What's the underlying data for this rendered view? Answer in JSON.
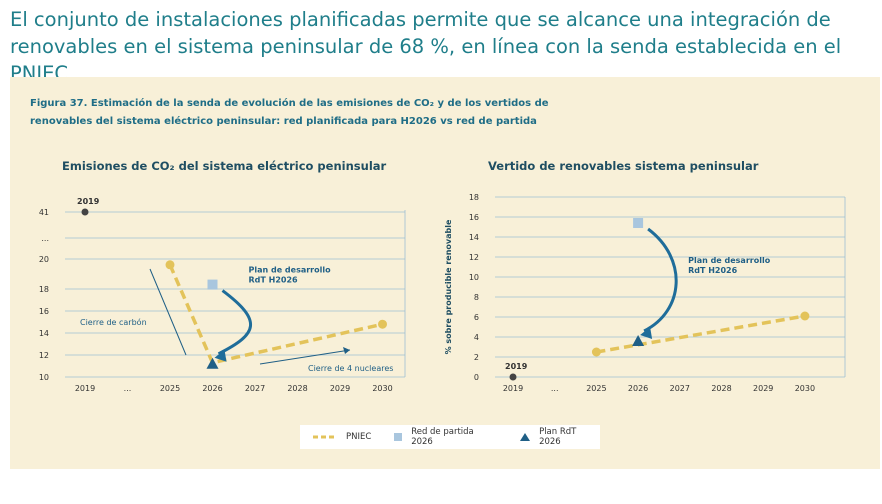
{
  "headline": "El conjunto de instalaciones planificadas permite que se alcance una integración de renovables en el sistema peninsular de 68 %, en línea con la senda establecida en el PNIEC.",
  "figure": {
    "title_line1": "Figura 37. Estimación de la senda de evolución de las emisiones de CO₂ y de los vertidos de",
    "title_line2": "renovables del sistema eléctrico peninsular: red planificada para H2026 vs red de partida"
  },
  "colors": {
    "pniec": "#e3c35a",
    "red_partida": "#a9c6de",
    "plan_rdt": "#1f5f86",
    "grid": "#9dbfd3",
    "arrow": "#1f6d9a"
  },
  "legend": {
    "pniec": "PNIEC",
    "red_partida": "Red de partida 2026",
    "plan_rdt": "Plan RdT 2026"
  },
  "chart_data": [
    {
      "type": "line",
      "title": "Emisiones de CO₂ del sistema eléctrico peninsular",
      "xlabel": "",
      "ylabel": "",
      "x": [
        "2019",
        "...",
        "2025",
        "2026",
        "2027",
        "2028",
        "2029",
        "2030"
      ],
      "y_ticks": [
        "10",
        "12",
        "14",
        "16",
        "18",
        "20",
        "...",
        "41"
      ],
      "series": [
        {
          "name": "PNIEC",
          "points": [
            [
              "2025",
              20.2
            ],
            [
              "2026",
              11.3
            ],
            [
              "2030",
              14.8
            ]
          ]
        },
        {
          "name": "Red de partida 2026",
          "points": [
            [
              "2026",
              18.4
            ]
          ]
        },
        {
          "name": "Plan RdT 2026",
          "points": [
            [
              "2026",
              11.2
            ]
          ]
        },
        {
          "name": "2019",
          "points": [
            [
              "2019",
              41
            ]
          ]
        }
      ],
      "annotations": {
        "point_2019": "2019",
        "plan_line1": "Plan de desarrollo",
        "plan_line2": "RdT H2026",
        "cierre_carbon": "Cierre de carbón",
        "cierre_nucleares": "Cierre de 4 nucleares"
      },
      "grid": true
    },
    {
      "type": "line",
      "title": "Vertido de renovables sistema peninsular",
      "xlabel": "",
      "ylabel": "% sobre producible renovable",
      "x": [
        "2019",
        "...",
        "2025",
        "2026",
        "2027",
        "2028",
        "2029",
        "2030"
      ],
      "y_ticks": [
        "0",
        "2",
        "4",
        "6",
        "8",
        "10",
        "12",
        "14",
        "16",
        "18"
      ],
      "ylim": [
        0,
        18
      ],
      "series": [
        {
          "name": "PNIEC",
          "points": [
            [
              "2025",
              2.5
            ],
            [
              "2030",
              6.1
            ]
          ]
        },
        {
          "name": "Red de partida 2026",
          "points": [
            [
              "2026",
              15.4
            ]
          ]
        },
        {
          "name": "Plan RdT 2026",
          "points": [
            [
              "2026",
              3.6
            ]
          ]
        },
        {
          "name": "2019",
          "points": [
            [
              "2019",
              0
            ]
          ]
        }
      ],
      "annotations": {
        "point_2019": "2019",
        "plan_line1": "Plan de desarrollo",
        "plan_line2": "RdT H2026"
      },
      "grid": true
    }
  ]
}
